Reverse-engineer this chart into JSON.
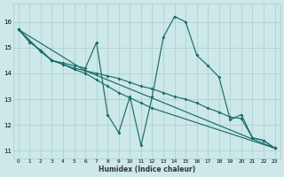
{
  "xlabel": "Humidex (Indice chaleur)",
  "xlim": [
    -0.5,
    23.5
  ],
  "ylim": [
    10.7,
    16.7
  ],
  "yticks": [
    11,
    12,
    13,
    14,
    15,
    16
  ],
  "xticks": [
    0,
    1,
    2,
    3,
    4,
    5,
    6,
    7,
    8,
    9,
    10,
    11,
    12,
    13,
    14,
    15,
    16,
    17,
    18,
    19,
    20,
    21,
    22,
    23
  ],
  "bg_color": "#cce8e8",
  "grid_color": "#aacccc",
  "line_color": "#1b6b6b",
  "line1_x": [
    0,
    1,
    2,
    3,
    4,
    5,
    6,
    7,
    8,
    9,
    10,
    11,
    12,
    13,
    14,
    15,
    16,
    17,
    18,
    19,
    20,
    21,
    22,
    23
  ],
  "line1_y": [
    15.7,
    15.2,
    14.9,
    14.5,
    14.4,
    14.3,
    14.2,
    15.2,
    12.4,
    11.7,
    13.1,
    11.2,
    13.1,
    15.4,
    16.2,
    16.0,
    14.7,
    14.3,
    13.85,
    12.2,
    12.4,
    11.5,
    11.4,
    11.1
  ],
  "line2_x": [
    0,
    6,
    23
  ],
  "line2_y": [
    15.7,
    14.1,
    11.1
  ],
  "line3_x": [
    0,
    2,
    3,
    4,
    5,
    6,
    7,
    8,
    9,
    10,
    11,
    12,
    13,
    14,
    15,
    16,
    17,
    18,
    19,
    20,
    21,
    22,
    23
  ],
  "line3_y": [
    15.7,
    14.85,
    14.5,
    14.35,
    14.2,
    14.1,
    14.0,
    13.9,
    13.8,
    13.65,
    13.5,
    13.4,
    13.25,
    13.1,
    13.0,
    12.85,
    12.65,
    12.5,
    12.3,
    12.25,
    11.5,
    11.4,
    11.1
  ],
  "line4_x": [
    0,
    2,
    3,
    4,
    5,
    6,
    7,
    8,
    9,
    10,
    11,
    12,
    23
  ],
  "line4_y": [
    15.7,
    14.85,
    14.5,
    14.35,
    14.15,
    14.0,
    13.75,
    13.5,
    13.25,
    13.05,
    12.85,
    12.65,
    11.1
  ],
  "lw": 0.85,
  "ms": 2.0
}
